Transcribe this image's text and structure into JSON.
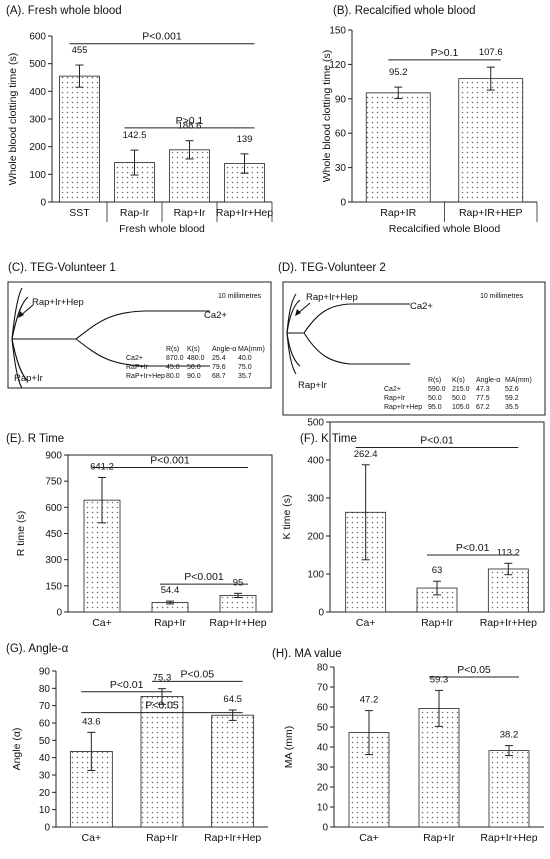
{
  "figure": {
    "teg_c": {
      "title": "(C). TEG-Volunteer 1",
      "scale": "10 millimetres",
      "trace_labels": {
        "top": "Rap+Ir+Hep",
        "ca": "Ca2+",
        "bottom": "Rap+Ir"
      },
      "table": {
        "headers": [
          "R(s)",
          "K(s)",
          "Angle-α",
          "MA(mm)"
        ],
        "rows": [
          {
            "label": "Ca2+",
            "values": [
              "870.0",
              "480.0",
              "25.4",
              "40.0"
            ]
          },
          {
            "label": "RaP+Ir",
            "values": [
              "45.0",
              "50.0",
              "79.6",
              "75.0"
            ]
          },
          {
            "label": "RaP+Ir+Hep",
            "values": [
              "80.0",
              "90.0",
              "68.7",
              "35.7"
            ]
          }
        ]
      }
    },
    "teg_d": {
      "title": "(D). TEG-Volunteer 2",
      "scale": "10 millimetres",
      "trace_labels": {
        "top": "Rap+Ir+Hep",
        "ca": "Ca2+",
        "bottom": "Rap+Ir"
      },
      "table": {
        "headers": [
          "R(s)",
          "K(s)",
          "Angle-α",
          "MA(mm)"
        ],
        "rows": [
          {
            "label": "Ca2+",
            "values": [
              "590.0",
              "215.0",
              "47.3",
              "52.6"
            ]
          },
          {
            "label": "Rap+Ir",
            "values": [
              "50.0",
              "50.0",
              "77.5",
              "59.2"
            ]
          },
          {
            "label": "Rap+Ir+Hep",
            "values": [
              "95.0",
              "105.0",
              "67.2",
              "35.5"
            ]
          }
        ]
      }
    }
  },
  "chart_data": [
    {
      "id": "A",
      "type": "bar",
      "title": "(A). Fresh whole blood",
      "xlabel": "Fresh whole blood",
      "ylabel": "Whole blood clotting time (s)",
      "ylim": [
        0,
        600
      ],
      "yticks": [
        0,
        100,
        200,
        300,
        400,
        500,
        600
      ],
      "categories": [
        "SST",
        "Rap-Ir",
        "Rap+Ir",
        "Rap+Ir+Hep"
      ],
      "values": [
        455,
        142.5,
        188.6,
        139
      ],
      "errors": [
        40,
        45,
        33,
        35
      ],
      "value_labels": [
        "455",
        "142.5",
        "188.6",
        "139"
      ],
      "annotations": [
        {
          "text": "P<0.001",
          "from": 0,
          "to": 3,
          "y": 572
        },
        {
          "text": "P>0.1",
          "from": 1,
          "to": 3,
          "y": 268
        }
      ]
    },
    {
      "id": "B",
      "type": "bar",
      "title": "(B). Recalcified whole blood",
      "xlabel": "Recalcified whole Blood",
      "ylabel": "Whole blood clotting time (s)",
      "ylim": [
        0,
        150
      ],
      "yticks": [
        0,
        30,
        60,
        90,
        120,
        150
      ],
      "categories": [
        "Rap+IR",
        "Rap+IR+HEP"
      ],
      "values": [
        95.2,
        107.6
      ],
      "errors": [
        5,
        10
      ],
      "value_labels": [
        "95.2",
        "107.6"
      ],
      "annotations": [
        {
          "text": "P>0.1",
          "from": 0,
          "to": 1,
          "y": 124
        }
      ]
    },
    {
      "id": "E",
      "type": "bar",
      "title": "(E). R Time",
      "ylabel": "R time (s)",
      "ylim": [
        0,
        900
      ],
      "yticks": [
        0,
        150,
        300,
        450,
        600,
        750,
        900
      ],
      "categories": [
        "Ca+",
        "Rap+Ir",
        "Rap+Ir+Hep"
      ],
      "values": [
        641.2,
        54.4,
        95
      ],
      "errors": [
        130,
        8,
        12
      ],
      "value_labels": [
        "641.2",
        "54.4",
        "95"
      ],
      "annotations": [
        {
          "text": "P<0.001",
          "from": 0,
          "to": 2,
          "y": 828
        },
        {
          "text": "P<0.001",
          "from": 1,
          "to": 2,
          "y": 160
        }
      ]
    },
    {
      "id": "F",
      "type": "bar",
      "title": "(F). K Time",
      "ylabel": "K time (s)",
      "ylim": [
        0,
        500
      ],
      "yticks": [
        0,
        100,
        200,
        300,
        400,
        500
      ],
      "categories": [
        "Ca+",
        "Rap+Ir",
        "Rap+Ir+Hep"
      ],
      "values": [
        262.4,
        63,
        113.2
      ],
      "errors": [
        125,
        18,
        15
      ],
      "value_labels": [
        "262.4",
        "63",
        "113.2"
      ],
      "annotations": [
        {
          "text": "P<0.01",
          "from": 0,
          "to": 2,
          "y": 433
        },
        {
          "text": "P<0.01",
          "from": 1,
          "to": 2,
          "y": 150
        }
      ]
    },
    {
      "id": "G",
      "type": "bar",
      "title": "(G). Angle-α",
      "ylabel": "Angle (α)",
      "ylim": [
        0,
        90
      ],
      "yticks": [
        0,
        10,
        20,
        30,
        40,
        50,
        60,
        70,
        80,
        90
      ],
      "categories": [
        "Ca+",
        "Rap+Ir",
        "Rap+Ir+Hep"
      ],
      "values": [
        43.6,
        75.3,
        64.5
      ],
      "errors": [
        11,
        4.5,
        3
      ],
      "value_labels": [
        "43.6",
        "75.3",
        "64.5"
      ],
      "annotations": [
        {
          "text": "P<0.01",
          "from": 0,
          "to": 1,
          "y": 78
        },
        {
          "text": "P<0.05",
          "from": 1,
          "to": 2,
          "y": 84
        },
        {
          "text": "P<0.05",
          "from": 0,
          "to": 2,
          "y": 66
        }
      ]
    },
    {
      "id": "H",
      "type": "bar",
      "title": "(H). MA value",
      "ylabel": "MA (mm)",
      "ylim": [
        0,
        80
      ],
      "yticks": [
        0,
        10,
        20,
        30,
        40,
        50,
        60,
        70,
        80
      ],
      "categories": [
        "Ca+",
        "Rap+Ir",
        "Rap+Ir+Hep"
      ],
      "values": [
        47.2,
        59.3,
        38.2
      ],
      "errors": [
        11,
        9,
        2.5
      ],
      "value_labels": [
        "47.2",
        "59.3",
        "38.2"
      ],
      "annotations": [
        {
          "text": "P<0.05",
          "from": 1,
          "to": 2,
          "y": 75
        }
      ]
    }
  ]
}
